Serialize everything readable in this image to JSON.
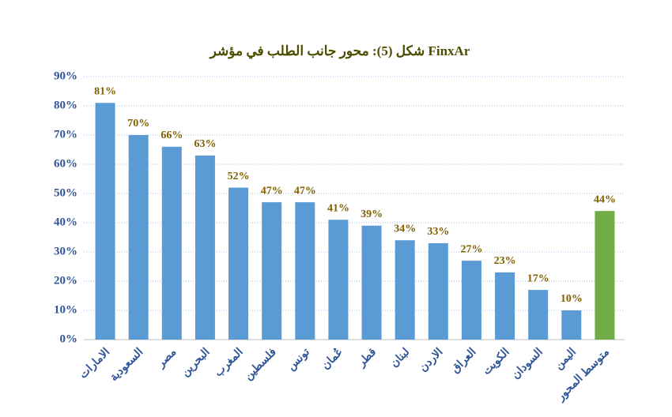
{
  "chart_data": {
    "type": "bar",
    "title": "شكل (5): محور جانب الطلب في مؤشر FinxAr",
    "categories": [
      "الامارات",
      "السعودية",
      "مصر",
      "البحرين",
      "المغرب",
      "فلسطين",
      "تونس",
      "عُمان",
      "قطر",
      "لبنان",
      "الاردن",
      "العراق",
      "الكويت",
      "السودان",
      "اليمن",
      "متوسط المحور"
    ],
    "values": [
      81,
      70,
      66,
      63,
      52,
      47,
      47,
      41,
      39,
      34,
      33,
      27,
      23,
      17,
      10,
      44
    ],
    "value_labels": [
      "81%",
      "70%",
      "66%",
      "63%",
      "52%",
      "47%",
      "47%",
      "41%",
      "39%",
      "34%",
      "33%",
      "27%",
      "23%",
      "17%",
      "10%",
      "44%"
    ],
    "colors": [
      "#5b9bd5",
      "#5b9bd5",
      "#5b9bd5",
      "#5b9bd5",
      "#5b9bd5",
      "#5b9bd5",
      "#5b9bd5",
      "#5b9bd5",
      "#5b9bd5",
      "#5b9bd5",
      "#5b9bd5",
      "#5b9bd5",
      "#5b9bd5",
      "#5b9bd5",
      "#5b9bd5",
      "#70ad47"
    ],
    "ylim": [
      0,
      90
    ],
    "yticks": [
      {
        "value": 0,
        "label": "0%"
      },
      {
        "value": 10,
        "label": "10%"
      },
      {
        "value": 20,
        "label": "20%"
      },
      {
        "value": 30,
        "label": "30%"
      },
      {
        "value": 40,
        "label": "40%"
      },
      {
        "value": 50,
        "label": "50%"
      },
      {
        "value": 60,
        "label": "60%"
      },
      {
        "value": 70,
        "label": "70%"
      },
      {
        "value": 80,
        "label": "80%"
      },
      {
        "value": 90,
        "label": "90%"
      }
    ],
    "grid": true
  }
}
